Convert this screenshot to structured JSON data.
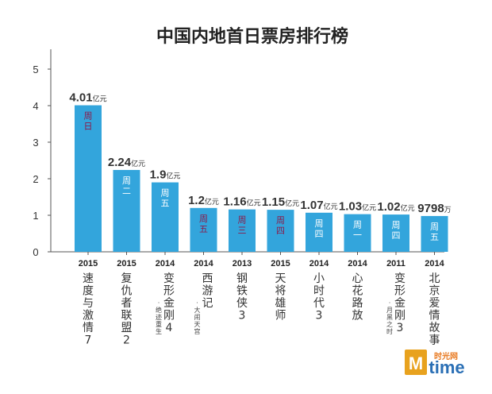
{
  "chart_data": {
    "type": "bar",
    "title": "中国内地首日票房排行榜",
    "ylim": [
      0,
      5
    ],
    "yticks": [
      "0",
      "1",
      "2",
      "3",
      "4",
      "5"
    ],
    "grid": false,
    "color": "#33a5dc",
    "items": [
      {
        "year": "2015",
        "name": "速度与激情7",
        "sub": "",
        "value": 4.01,
        "num": "4.01",
        "unit": "亿元",
        "day": "周日",
        "day_color": "#8b1a4a"
      },
      {
        "year": "2015",
        "name": "复仇者联盟2",
        "sub": "",
        "value": 2.24,
        "num": "2.24",
        "unit": "亿元",
        "day": "周二",
        "day_color": "#ffffff"
      },
      {
        "year": "2014",
        "name": "变形金刚4",
        "sub": "·绝迹重生",
        "value": 1.9,
        "num": "1.9",
        "unit": "亿元",
        "day": "周五",
        "day_color": "#ffffff"
      },
      {
        "year": "2014",
        "name": "西游记",
        "sub": "·大闹天宫",
        "value": 1.2,
        "num": "1.2",
        "unit": "亿元",
        "day": "周五",
        "day_color": "#8b1a4a"
      },
      {
        "year": "2013",
        "name": "钢铁侠3",
        "sub": "",
        "value": 1.16,
        "num": "1.16",
        "unit": "亿元",
        "day": "周三",
        "day_color": "#8b1a4a"
      },
      {
        "year": "2015",
        "name": "天将雄师",
        "sub": "",
        "value": 1.15,
        "num": "1.15",
        "unit": "亿元",
        "day": "周四",
        "day_color": "#8b1a4a"
      },
      {
        "year": "2014",
        "name": "小时代3",
        "sub": "",
        "value": 1.07,
        "num": "1.07",
        "unit": "亿元",
        "day": "周四",
        "day_color": "#ffffff"
      },
      {
        "year": "2014",
        "name": "心花路放",
        "sub": "",
        "value": 1.03,
        "num": "1.03",
        "unit": "亿元",
        "day": "周一",
        "day_color": "#ffffff"
      },
      {
        "year": "2011",
        "name": "变形金刚3",
        "sub": "·月黑之时",
        "value": 1.02,
        "num": "1.02",
        "unit": "亿元",
        "day": "周四",
        "day_color": "#ffffff"
      },
      {
        "year": "2014",
        "name": "北京爱情故事",
        "sub": "",
        "value": 0.9798,
        "num": "9798",
        "unit": "万",
        "day": "周五",
        "day_color": "#ffffff"
      }
    ]
  },
  "logo": {
    "zh": "时光网",
    "en": "time",
    "initial": "M"
  }
}
